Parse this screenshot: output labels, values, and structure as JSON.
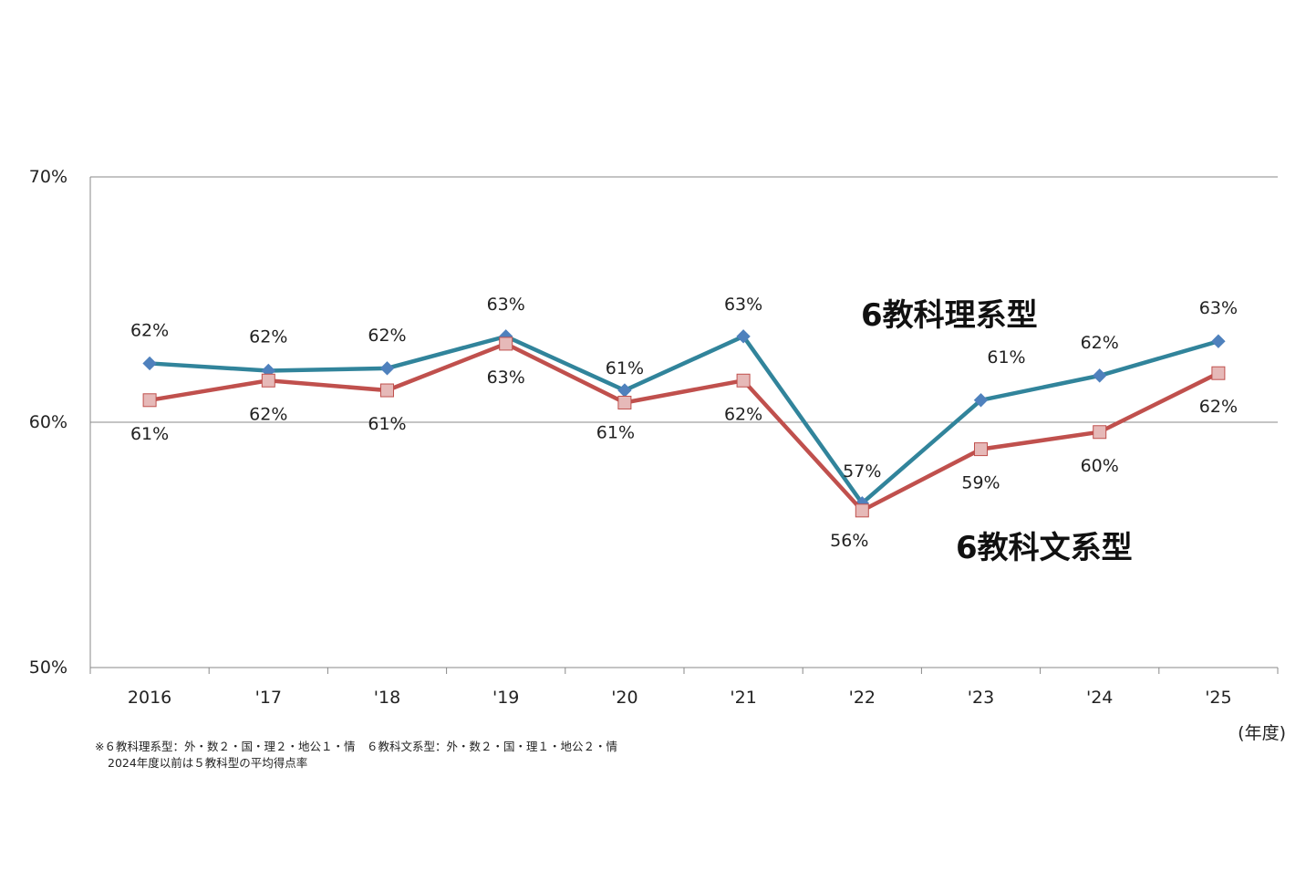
{
  "chart_data": {
    "type": "line",
    "categories": [
      "2016",
      "'17",
      "'18",
      "'19",
      "'20",
      "'21",
      "'22",
      "'23",
      "'24",
      "'25"
    ],
    "ylim": [
      50,
      70
    ],
    "yticks": [
      "50%",
      "60%",
      "70%"
    ],
    "xunit": "(年度)",
    "grid": true,
    "series": [
      {
        "name": "6教科理系型",
        "color": "#31849B",
        "marker": "diamond",
        "markerColor": "#4F81BD",
        "values": [
          62.4,
          62.1,
          62.2,
          63.5,
          61.3,
          63.5,
          56.7,
          60.9,
          61.9,
          63.3
        ],
        "labels": [
          "62%",
          "62%",
          "62%",
          "63%",
          "61%",
          "63%",
          "57%",
          "61%",
          "62%",
          "63%"
        ]
      },
      {
        "name": "6教科文系型",
        "color": "#C0504D",
        "marker": "square",
        "markerColor": "#E6B9B8",
        "values": [
          60.9,
          61.7,
          61.3,
          63.2,
          60.8,
          61.7,
          56.4,
          58.9,
          59.6,
          62.0
        ],
        "labels": [
          "61%",
          "62%",
          "61%",
          "63%",
          "61%",
          "62%",
          "56%",
          "59%",
          "60%",
          "62%"
        ]
      }
    ]
  },
  "footnote": {
    "line1": "※６教科理系型：外・数２・国・理２・地公１・情　６教科文系型：外・数２・国・理１・地公２・情",
    "line2": "2024年度以前は５教科型の平均得点率"
  }
}
